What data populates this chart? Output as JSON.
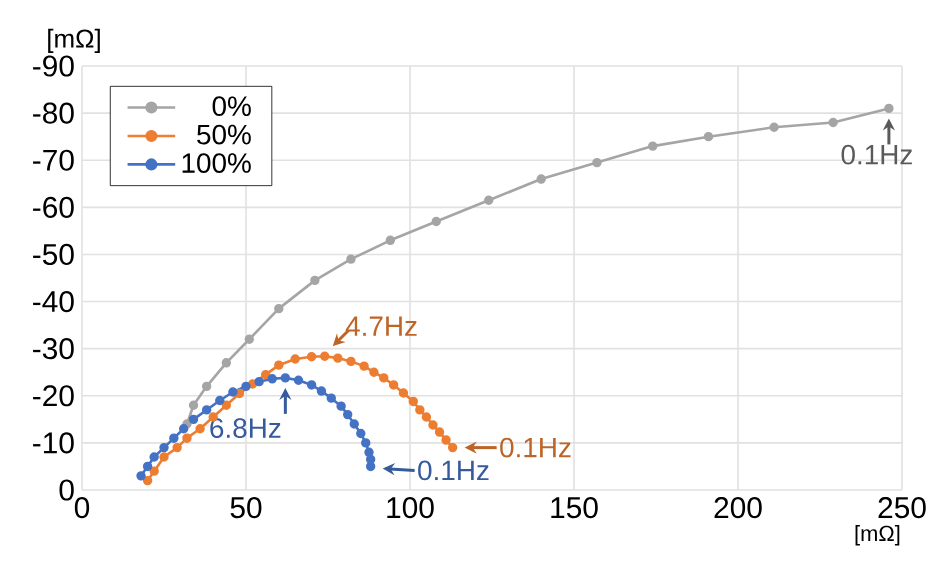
{
  "chart_data": {
    "type": "line",
    "xlabel": "[mΩ]",
    "ylabel": "[mΩ]",
    "xlim": [
      0,
      250
    ],
    "xticks": [
      0,
      50,
      100,
      150,
      200,
      250
    ],
    "ylim": [
      0,
      -90
    ],
    "yticks": [
      0,
      -10,
      -20,
      -30,
      -40,
      -50,
      -60,
      -70,
      -80,
      -90
    ],
    "grid": true,
    "legend": "top left",
    "marker": "circle",
    "series": [
      {
        "name": "0%",
        "color": "#a5a5a5",
        "x": [
          32,
          34,
          38,
          44,
          51,
          60,
          71,
          82,
          94,
          108,
          124,
          140,
          157,
          174,
          191,
          211,
          229,
          246
        ],
        "values": [
          -14,
          -18,
          -22,
          -27,
          -32,
          -38.5,
          -44.5,
          -49,
          -53,
          -57,
          -61.5,
          -66,
          -69.5,
          -73,
          -75,
          -77,
          -78,
          -81
        ]
      },
      {
        "name": "50%",
        "color": "#ed7d31",
        "x": [
          20,
          22,
          25,
          29,
          32,
          36,
          40,
          44,
          48,
          52,
          56,
          60,
          65,
          70,
          74,
          78,
          82,
          86,
          89,
          92,
          95,
          98,
          101,
          103,
          105,
          107,
          109,
          111,
          113
        ],
        "values": [
          -2,
          -4,
          -7,
          -9,
          -11,
          -13,
          -15.5,
          -18,
          -20.5,
          -22.5,
          -24.5,
          -26.5,
          -27.8,
          -28.3,
          -28.4,
          -28,
          -27.3,
          -26.3,
          -25,
          -23.8,
          -22.3,
          -20.6,
          -18.8,
          -17,
          -15.5,
          -13.8,
          -12.3,
          -10.6,
          -9
        ]
      },
      {
        "name": "100%",
        "color": "#4472c4",
        "x": [
          18,
          20,
          22,
          25,
          28,
          31,
          34,
          38,
          42,
          46,
          50,
          54,
          58,
          62,
          66,
          70,
          73,
          76,
          79,
          81,
          83,
          85,
          86.5,
          87.5,
          88,
          88
        ],
        "values": [
          -3,
          -5,
          -7,
          -9,
          -11,
          -13,
          -15,
          -17,
          -19,
          -20.8,
          -22,
          -23,
          -23.6,
          -23.8,
          -23.3,
          -22.3,
          -21,
          -19.5,
          -17.8,
          -16,
          -14,
          -12,
          -10,
          -8,
          -6.5,
          -5
        ]
      }
    ],
    "annotations": [
      {
        "text": "0.1Hz",
        "x": 246,
        "y": -81
      },
      {
        "text": "4.7Hz",
        "x": 74,
        "y": -28.4
      },
      {
        "text": "6.8Hz",
        "x": 62,
        "y": -23.8
      },
      {
        "text": "0.1Hz",
        "x": 113,
        "y": -9
      },
      {
        "text": "0.1Hz",
        "x": 88,
        "y": -5
      }
    ]
  }
}
